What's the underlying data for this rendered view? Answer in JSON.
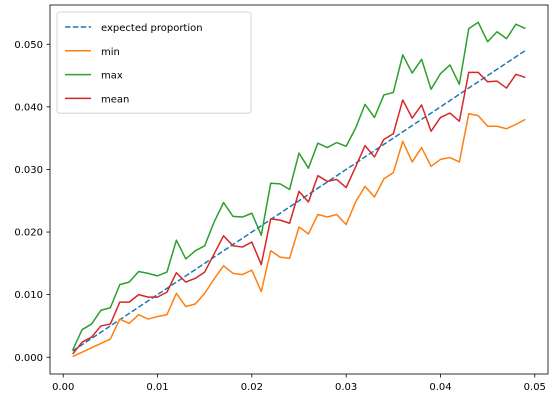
{
  "chart_data": {
    "type": "line",
    "title": "",
    "xlabel": "",
    "ylabel": "",
    "xlim": [
      -0.0014,
      0.0514
    ],
    "ylim": [
      -0.00268,
      0.05627
    ],
    "grid": false,
    "legend_position": "top-left",
    "x_ticks": [
      0.0,
      0.01,
      0.02,
      0.03,
      0.04,
      0.05
    ],
    "x_tick_labels": [
      "0.00",
      "0.01",
      "0.02",
      "0.03",
      "0.04",
      "0.05"
    ],
    "y_ticks": [
      0.0,
      0.01,
      0.02,
      0.03,
      0.04,
      0.05
    ],
    "y_tick_labels": [
      "0.000",
      "0.010",
      "0.020",
      "0.030",
      "0.040",
      "0.050"
    ],
    "x": [
      0.001,
      0.002,
      0.003,
      0.004,
      0.005,
      0.006,
      0.007,
      0.008,
      0.009,
      0.01,
      0.011,
      0.012,
      0.013,
      0.014,
      0.015,
      0.016,
      0.017,
      0.018,
      0.019,
      0.02,
      0.021,
      0.022,
      0.023,
      0.024,
      0.025,
      0.026,
      0.027,
      0.028,
      0.029,
      0.03,
      0.031,
      0.032,
      0.033,
      0.034,
      0.035,
      0.036,
      0.037,
      0.038,
      0.039,
      0.04,
      0.041,
      0.042,
      0.043,
      0.044,
      0.045,
      0.046,
      0.047,
      0.048,
      0.049
    ],
    "series": [
      {
        "name": "expected proportion",
        "color": "#1f77b4",
        "style": "dashed",
        "values": [
          0.001,
          0.002,
          0.003,
          0.004,
          0.005,
          0.006,
          0.007,
          0.008,
          0.009,
          0.01,
          0.011,
          0.012,
          0.013,
          0.014,
          0.015,
          0.016,
          0.017,
          0.018,
          0.019,
          0.02,
          0.021,
          0.022,
          0.023,
          0.024,
          0.025,
          0.026,
          0.027,
          0.028,
          0.029,
          0.03,
          0.031,
          0.032,
          0.033,
          0.034,
          0.035,
          0.036,
          0.037,
          0.038,
          0.039,
          0.04,
          0.041,
          0.042,
          0.043,
          0.044,
          0.045,
          0.046,
          0.047,
          0.048,
          0.049
        ]
      },
      {
        "name": "min",
        "color": "#ff7f0e",
        "style": "solid",
        "values": [
          0.0001,
          0.0008,
          0.0015,
          0.0022,
          0.0029,
          0.0061,
          0.0054,
          0.0068,
          0.0061,
          0.0065,
          0.0068,
          0.0102,
          0.0081,
          0.0085,
          0.0102,
          0.0125,
          0.0146,
          0.0134,
          0.0132,
          0.0139,
          0.0105,
          0.017,
          0.016,
          0.0158,
          0.0208,
          0.0197,
          0.0228,
          0.0224,
          0.0228,
          0.0212,
          0.0248,
          0.0273,
          0.0256,
          0.0285,
          0.0295,
          0.0345,
          0.0312,
          0.0335,
          0.0305,
          0.0316,
          0.0319,
          0.0312,
          0.0389,
          0.0386,
          0.0369,
          0.0369,
          0.0365,
          0.0372,
          0.038
        ]
      },
      {
        "name": "max",
        "color": "#2ca02c",
        "style": "solid",
        "values": [
          0.0011,
          0.0044,
          0.0053,
          0.0075,
          0.0079,
          0.0116,
          0.012,
          0.0137,
          0.0134,
          0.013,
          0.0136,
          0.0187,
          0.0157,
          0.017,
          0.0178,
          0.0216,
          0.0247,
          0.0225,
          0.0224,
          0.023,
          0.0195,
          0.0278,
          0.0277,
          0.0268,
          0.0326,
          0.0302,
          0.0342,
          0.0335,
          0.0343,
          0.0337,
          0.0366,
          0.0404,
          0.0383,
          0.0419,
          0.0423,
          0.0483,
          0.0454,
          0.0476,
          0.0428,
          0.0453,
          0.0467,
          0.0436,
          0.0525,
          0.0535,
          0.0504,
          0.052,
          0.0509,
          0.0532,
          0.0525
        ]
      },
      {
        "name": "mean",
        "color": "#d62728",
        "style": "solid",
        "values": [
          0.0005,
          0.0024,
          0.0032,
          0.005,
          0.0053,
          0.0088,
          0.0088,
          0.01,
          0.0096,
          0.0096,
          0.0104,
          0.0135,
          0.012,
          0.0126,
          0.0136,
          0.0165,
          0.0194,
          0.0178,
          0.0176,
          0.0184,
          0.0148,
          0.0221,
          0.0219,
          0.0214,
          0.0265,
          0.0248,
          0.029,
          0.0281,
          0.0284,
          0.0271,
          0.0304,
          0.0338,
          0.032,
          0.0348,
          0.0357,
          0.0411,
          0.0382,
          0.0403,
          0.0361,
          0.0383,
          0.039,
          0.0377,
          0.0455,
          0.0455,
          0.044,
          0.0441,
          0.043,
          0.0452,
          0.0447
        ]
      }
    ]
  }
}
